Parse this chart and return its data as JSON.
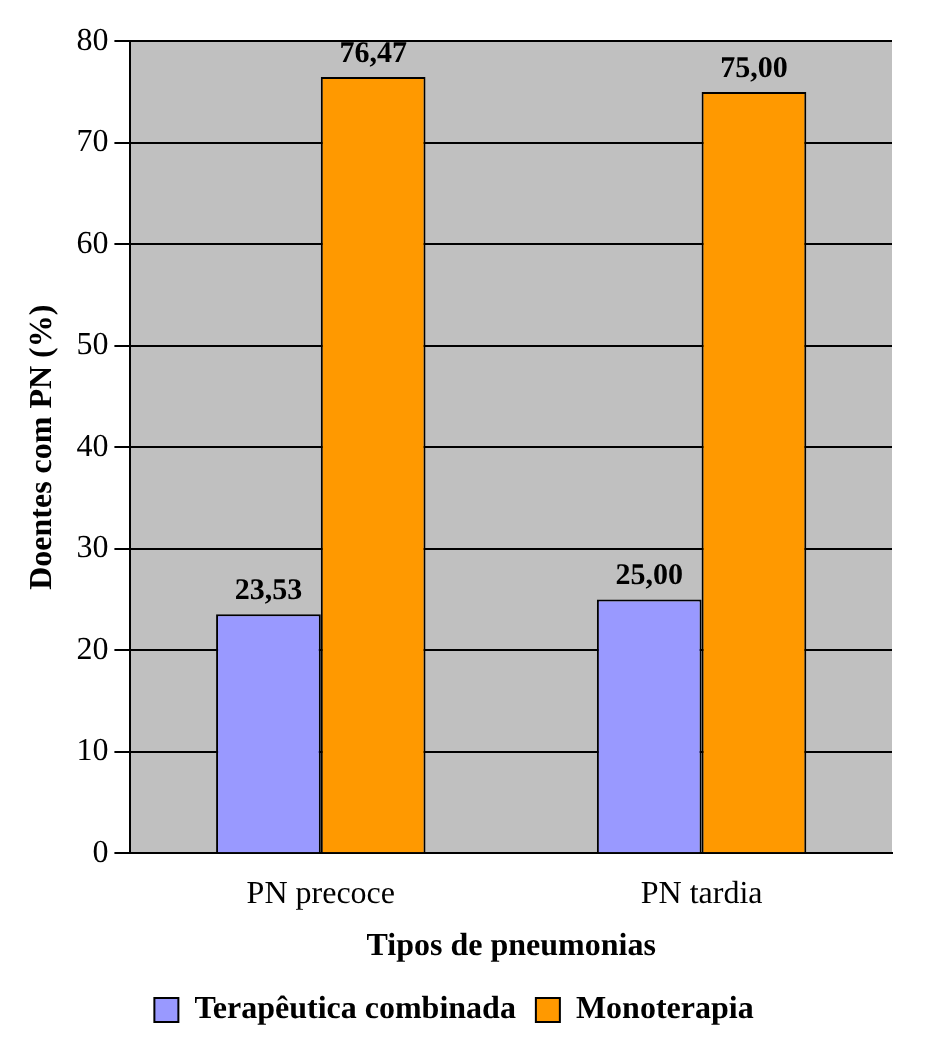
{
  "chart_data": {
    "type": "bar",
    "xlabel": "Tipos de pneumonias",
    "ylabel": "Doentes com PN (%)",
    "categories": [
      "PN precoce",
      "PN tardia"
    ],
    "series": [
      {
        "name": "Terapêutica combinada",
        "color": "#9999ff",
        "values": [
          23.53,
          25.0
        ],
        "value_labels": [
          "23,53",
          "25,00"
        ]
      },
      {
        "name": "Monoterapia",
        "color": "#ff9900",
        "values": [
          76.47,
          75.0
        ],
        "value_labels": [
          "76,47",
          "75,00"
        ]
      }
    ],
    "ylim": [
      0,
      80
    ],
    "yticks": [
      0,
      10,
      20,
      30,
      40,
      50,
      60,
      70,
      80
    ],
    "grid": "y",
    "legend": "bottom"
  }
}
